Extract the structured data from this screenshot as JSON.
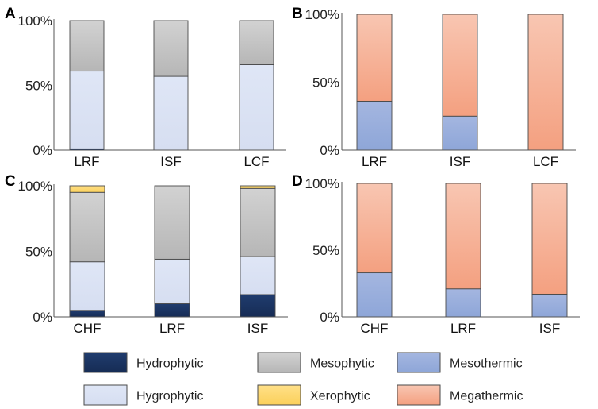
{
  "chart_data": [
    {
      "type": "bar",
      "stacked": true,
      "panel": "A",
      "categories": [
        "LRF",
        "ISF",
        "LCF"
      ],
      "y_ticks": [
        "0%",
        "50%",
        "100%"
      ],
      "ylim": [
        0,
        100
      ],
      "series": [
        {
          "name": "Hydrophytic",
          "values": [
            1,
            0,
            0
          ]
        },
        {
          "name": "Hygrophytic",
          "values": [
            60,
            57,
            66
          ]
        },
        {
          "name": "Xerophytic",
          "values": [
            0,
            0,
            0
          ]
        },
        {
          "name": "Mesophytic",
          "values": [
            39,
            43,
            34
          ]
        }
      ]
    },
    {
      "type": "bar",
      "stacked": true,
      "panel": "B",
      "categories": [
        "LRF",
        "ISF",
        "LCF"
      ],
      "y_ticks": [
        "0%",
        "50%",
        "100%"
      ],
      "ylim": [
        0,
        100
      ],
      "series": [
        {
          "name": "Mesothermic",
          "values": [
            36,
            25,
            0
          ]
        },
        {
          "name": "Megathermic",
          "values": [
            64,
            75,
            100
          ]
        }
      ]
    },
    {
      "type": "bar",
      "stacked": true,
      "panel": "C",
      "categories": [
        "CHF",
        "LRF",
        "ISF"
      ],
      "y_ticks": [
        "0%",
        "50%",
        "100%"
      ],
      "ylim": [
        0,
        100
      ],
      "series": [
        {
          "name": "Hydrophytic",
          "values": [
            5,
            10,
            17
          ]
        },
        {
          "name": "Hygrophytic",
          "values": [
            37,
            34,
            29
          ]
        },
        {
          "name": "Mesophytic",
          "values": [
            53,
            56,
            52
          ]
        },
        {
          "name": "Xerophytic",
          "values": [
            5,
            0,
            2
          ]
        }
      ]
    },
    {
      "type": "bar",
      "stacked": true,
      "panel": "D",
      "categories": [
        "CHF",
        "LRF",
        "ISF"
      ],
      "y_ticks": [
        "0%",
        "50%",
        "100%"
      ],
      "ylim": [
        0,
        100
      ],
      "series": [
        {
          "name": "Mesothermic",
          "values": [
            33,
            21,
            17
          ]
        },
        {
          "name": "Megathermic",
          "values": [
            67,
            79,
            83
          ]
        }
      ]
    }
  ],
  "legend": [
    {
      "name": "Hydrophytic",
      "color": "#1c3663"
    },
    {
      "name": "Mesophytic",
      "color": "#c4c4c4"
    },
    {
      "name": "Mesothermic",
      "color": "#9ab0dc"
    },
    {
      "name": "Hygrophytic",
      "color": "#dce3f4"
    },
    {
      "name": "Xerophytic",
      "color": "#fdd86a"
    },
    {
      "name": "Megathermic",
      "color": "#f6a888"
    }
  ]
}
